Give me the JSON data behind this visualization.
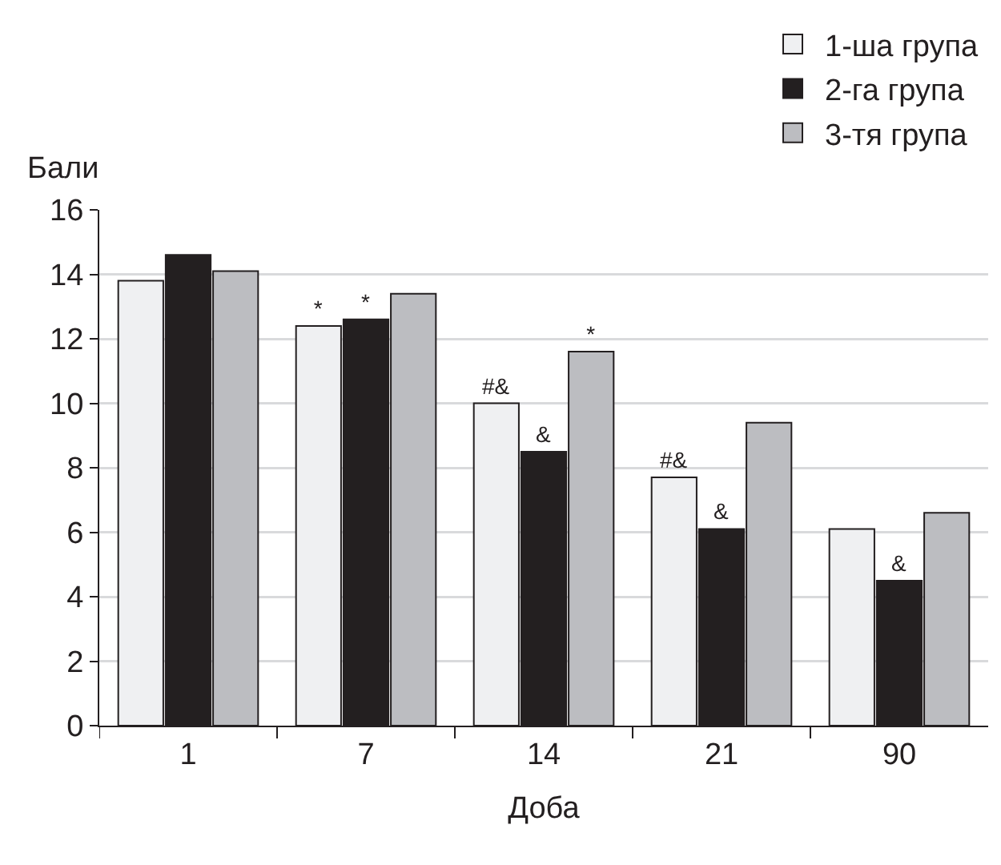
{
  "chart_data": {
    "type": "bar",
    "xlabel": "Доба",
    "ylabel": "Бали",
    "categories": [
      "1",
      "7",
      "14",
      "21",
      "90"
    ],
    "series": [
      {
        "name": "1-ша група",
        "color": "#eff0f2",
        "values": [
          13.8,
          12.4,
          10.0,
          7.7,
          6.1
        ],
        "value_labels": [
          null,
          "*",
          "#&",
          "#&",
          null
        ]
      },
      {
        "name": "2-га група",
        "color": "#231f20",
        "values": [
          14.6,
          12.6,
          8.5,
          6.1,
          4.5
        ],
        "value_labels": [
          null,
          "*",
          "&",
          "&",
          "&"
        ]
      },
      {
        "name": "3-тя група",
        "color": "#bcbdc1",
        "values": [
          14.1,
          13.4,
          11.6,
          9.4,
          6.6
        ],
        "value_labels": [
          null,
          null,
          "*",
          null,
          null
        ]
      }
    ],
    "ylim": [
      0,
      16
    ],
    "yticks": [
      0,
      2,
      4,
      6,
      8,
      10,
      12,
      14,
      16
    ],
    "grid": "y",
    "legend": "top right"
  }
}
